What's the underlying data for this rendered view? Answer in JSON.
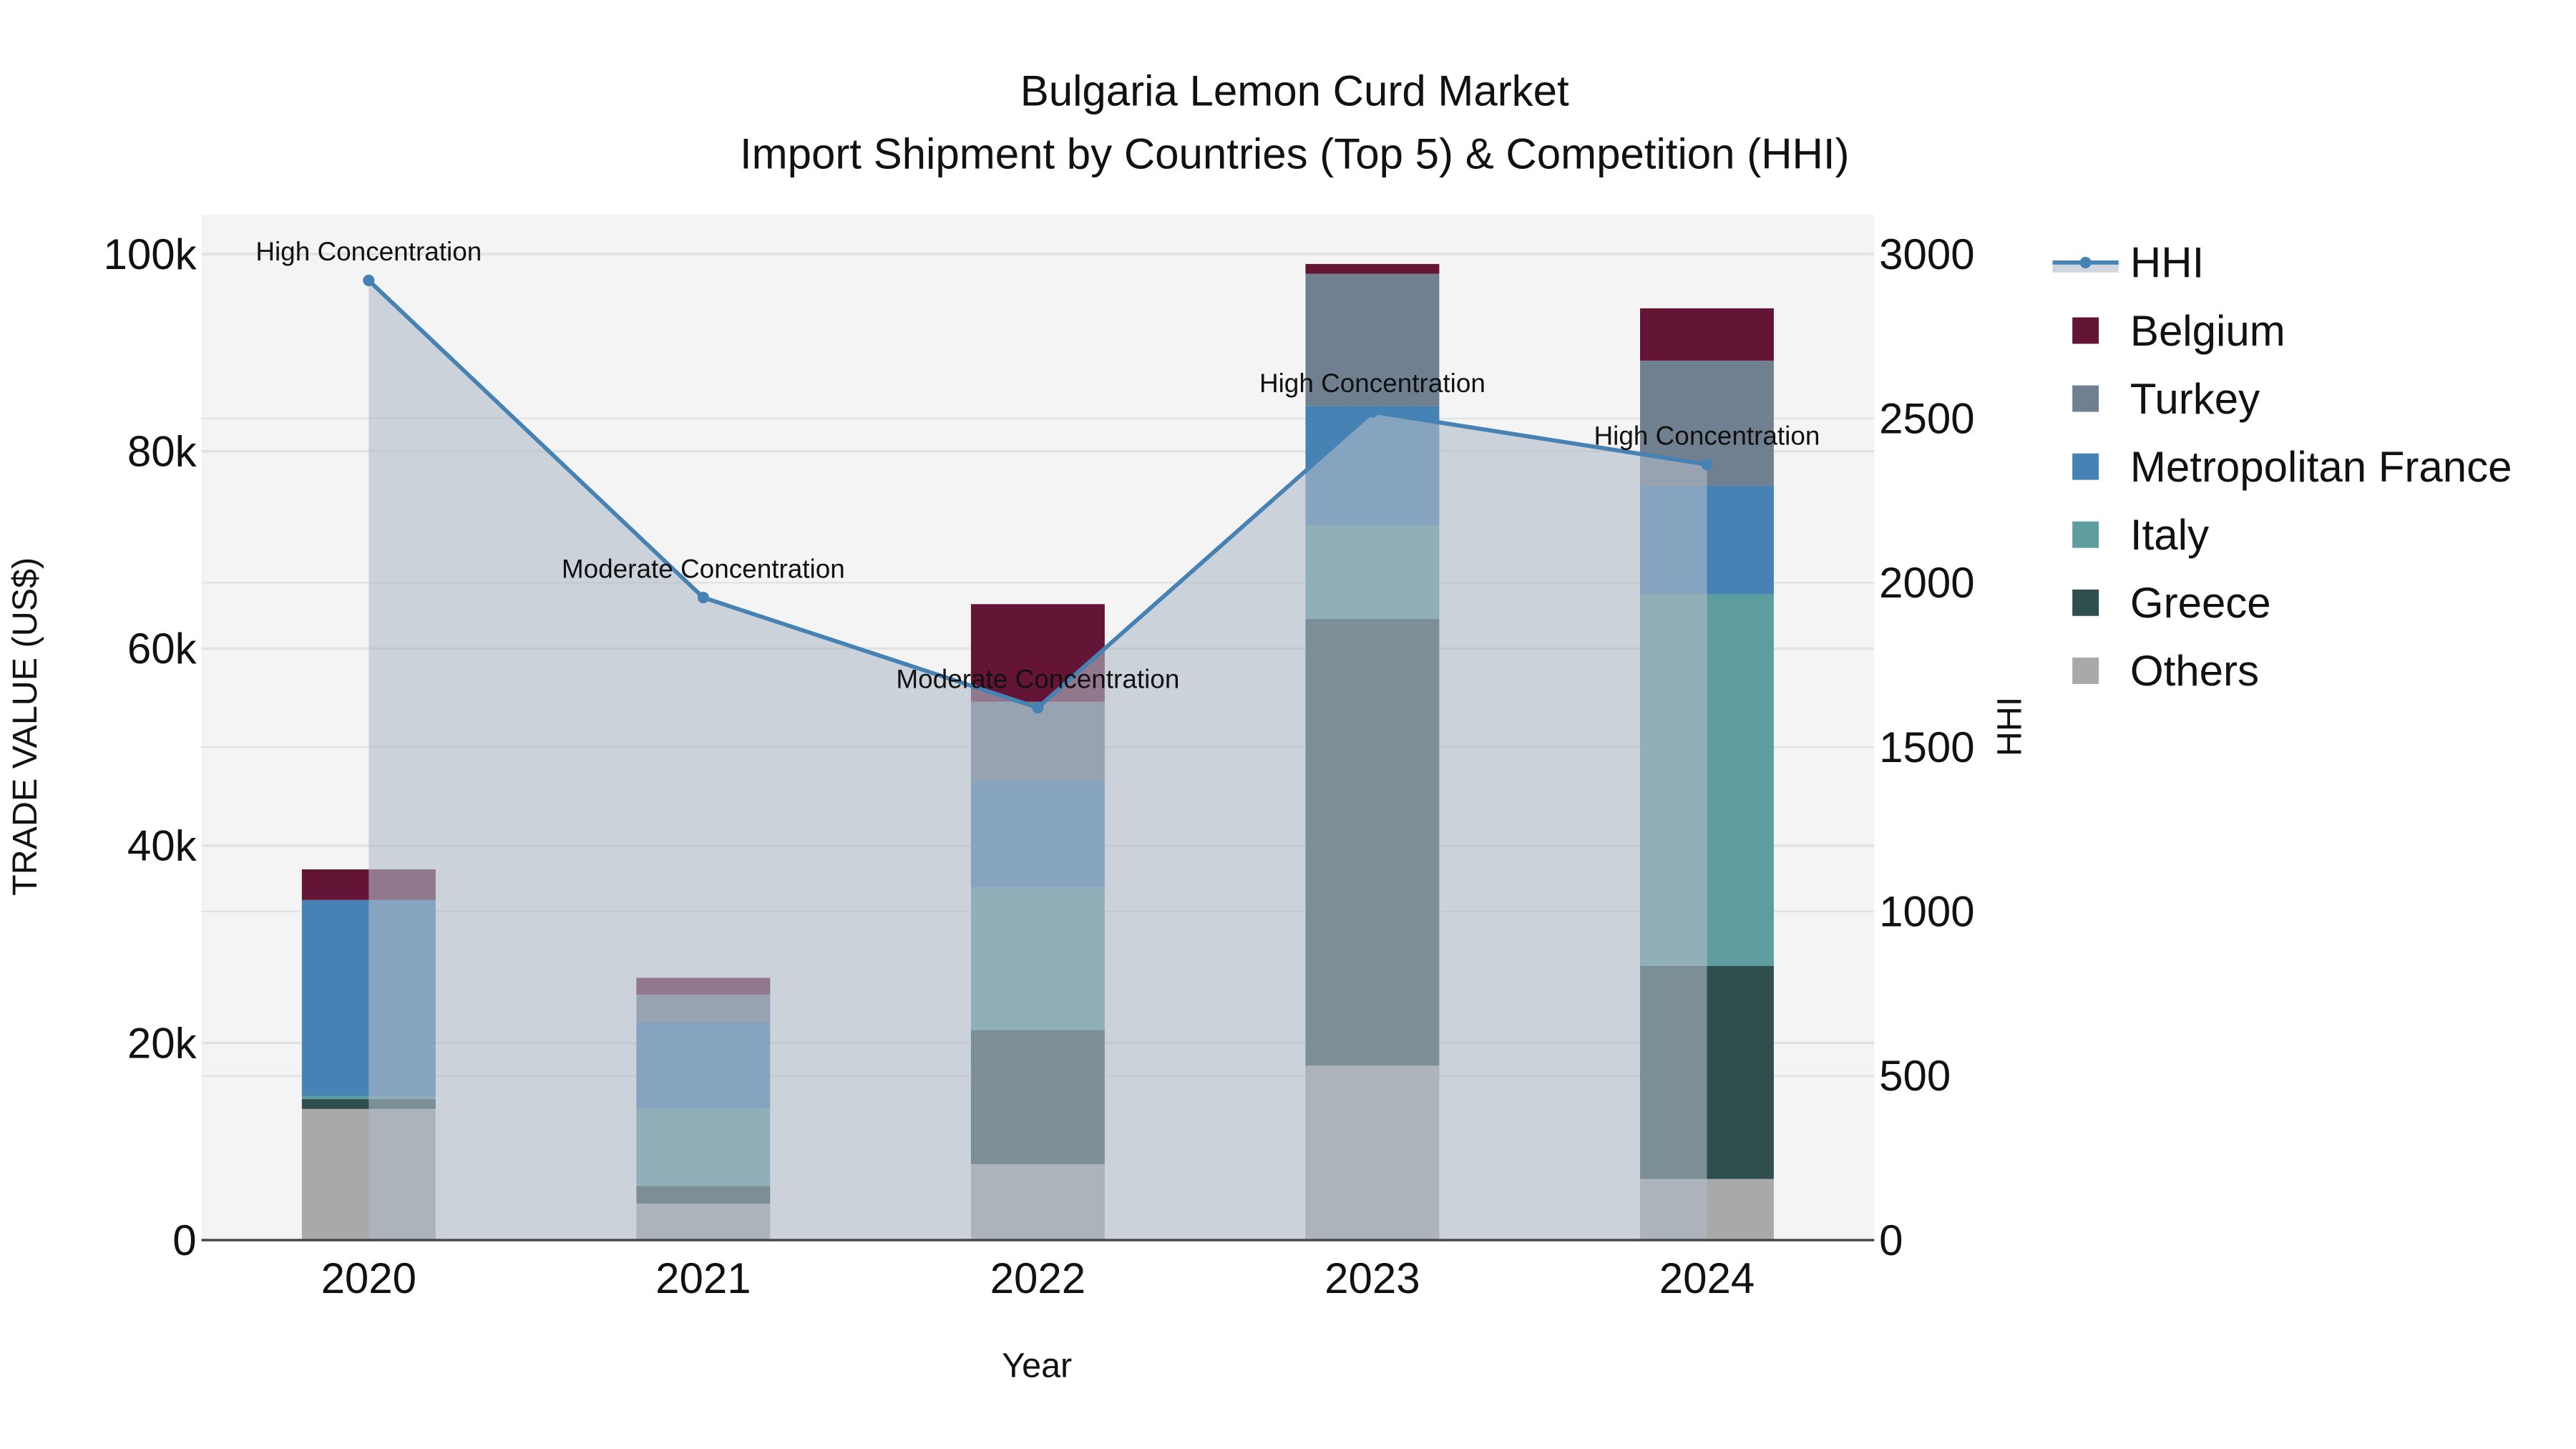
{
  "chart_data": {
    "type": "bar",
    "title": "Bulgaria Lemon Curd Market",
    "subtitle": "Import Shipment by Countries (Top 5) & Competition (HHI)",
    "xlabel": "Year",
    "ylabel": "TRADE VALUE (US$)",
    "y2label": "HHI",
    "categories": [
      "2020",
      "2021",
      "2022",
      "2023",
      "2024"
    ],
    "ylim": [
      0,
      104000
    ],
    "y2lim": [
      0,
      3120
    ],
    "yticks": [
      0,
      20000,
      40000,
      60000,
      80000,
      100000
    ],
    "ytick_labels": [
      "0",
      "20k",
      "40k",
      "60k",
      "80k",
      "100k"
    ],
    "y2ticks": [
      0,
      500,
      1000,
      1500,
      2000,
      2500,
      3000
    ],
    "y2tick_labels": [
      "0",
      "500",
      "1000",
      "1500",
      "2000",
      "2500",
      "3000"
    ],
    "grid": true,
    "legend_position": "right",
    "series": [
      {
        "name": "Others",
        "color": "#A9A9A9",
        "values": [
          13300,
          3700,
          7700,
          17700,
          6200
        ]
      },
      {
        "name": "Greece",
        "color": "#2F4F4F",
        "values": [
          1000,
          1800,
          13600,
          45300,
          21600
        ]
      },
      {
        "name": "Italy",
        "color": "#5F9EA0",
        "values": [
          300,
          7900,
          14500,
          9500,
          37700
        ]
      },
      {
        "name": "Metropolitan France",
        "color": "#4682B4",
        "values": [
          19900,
          8700,
          10800,
          12100,
          11000
        ]
      },
      {
        "name": "Turkey",
        "color": "#708090",
        "values": [
          0,
          2800,
          8000,
          13400,
          12700
        ]
      },
      {
        "name": "Belgium",
        "color": "#641434",
        "values": [
          3100,
          1700,
          9900,
          1000,
          5300
        ]
      }
    ],
    "hhi": {
      "name": "HHI",
      "color": "#4682B4",
      "values": [
        2920,
        1955,
        1620,
        2520,
        2360
      ],
      "annotations": [
        "High Concentration",
        "Moderate Concentration",
        "Moderate Concentration",
        "High Concentration",
        "High Concentration"
      ]
    },
    "legend_order": [
      "HHI",
      "Belgium",
      "Turkey",
      "Metropolitan France",
      "Italy",
      "Greece",
      "Others"
    ]
  }
}
